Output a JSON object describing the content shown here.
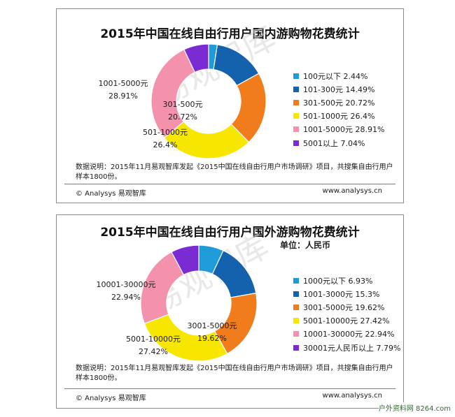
{
  "chart_data": [
    {
      "type": "pie",
      "title": "2015年中国在线自由行用户国内游购物花费统计",
      "categories": [
        "100元以下",
        "101-300元",
        "301-500元",
        "501-1000元",
        "1001-5000元",
        "5001以上"
      ],
      "values": [
        2.44,
        14.49,
        20.72,
        26.4,
        28.91,
        7.04
      ],
      "legend": [
        "100元以下 2.44%",
        "101-300元 14.49%",
        "301-500元 20.72%",
        "501-1000元 26.4%",
        "1001-5000元 28.91%",
        "5001以上 7.04%"
      ],
      "colors": [
        "#1f9bd9",
        "#1462ad",
        "#f07c1b",
        "#f6e600",
        "#f492ae",
        "#7a2bd2"
      ],
      "data_labels": [
        {
          "index": 2,
          "name": "301-500元",
          "value": "20.72%"
        },
        {
          "index": 3,
          "name": "501-1000元",
          "value": "26.4%"
        },
        {
          "index": 4,
          "name": "1001-5000元",
          "value": "28.91%"
        }
      ],
      "legend_position": "right",
      "watermark": "易观智库",
      "note": "数据说明：2015年11月易观智库发起《2015中国在线自由行用户市场调研》项目，共搜集自由行用户样本1800份。",
      "copyright": "© Analysys 易观智库",
      "website": "www.analysys.cn"
    },
    {
      "type": "pie",
      "title": "2015年中国在线自由行用户国外游购物花费统计",
      "unit": "单位：人民币",
      "categories": [
        "1000元以下",
        "1001-3000元",
        "3001-5000元",
        "5001-10000元",
        "10001-30000元",
        "30001元人民币以上"
      ],
      "values": [
        6.93,
        15.3,
        19.62,
        27.42,
        22.94,
        7.79
      ],
      "legend": [
        "1000元以下 6.93%",
        "1001-3000元 15.3%",
        "3001-5000元 19.62%",
        "5001-10000元 27.42%",
        "10001-30000元 22.94%",
        "30001元人民币以上 7.79%"
      ],
      "colors": [
        "#1f9bd9",
        "#1462ad",
        "#f07c1b",
        "#f6e600",
        "#f492ae",
        "#7a2bd2"
      ],
      "data_labels": [
        {
          "index": 2,
          "name": "3001-5000元",
          "value": "19.62%"
        },
        {
          "index": 3,
          "name": "5001-10000元",
          "value": "27.42%"
        },
        {
          "index": 4,
          "name": "10001-30000元",
          "value": "22.94%"
        }
      ],
      "legend_position": "right",
      "watermark": "易观智库",
      "note": "数据说明：2015年11月易观智库发起《2015中国在线自由行用户市场调研》项目，共搜集自由行用户样本1800份。",
      "copyright": "© Analysys 易观智库",
      "website": "www.analysys.cn"
    }
  ],
  "site_watermark": "户外资料网 8264.com"
}
